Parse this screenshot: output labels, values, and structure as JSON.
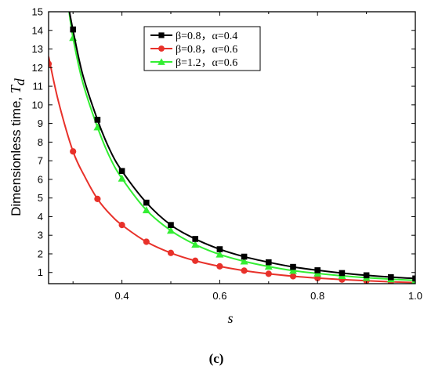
{
  "chart_data": {
    "type": "line",
    "panel_label": "(c)",
    "xlabel": "s",
    "ylabel_main": "Dimensionless time, ",
    "ylabel_symbol": "T",
    "ylabel_subscript": "d",
    "xlim": [
      0.25,
      1.0
    ],
    "ylim": [
      0.4,
      15
    ],
    "x_ticks": [
      0.4,
      0.6,
      0.8,
      1.0
    ],
    "x_tick_labels": [
      "0.4",
      "0.6",
      "0.8",
      "1.0"
    ],
    "y_ticks": [
      1,
      2,
      3,
      4,
      5,
      6,
      7,
      8,
      9,
      10,
      11,
      12,
      13,
      14,
      15
    ],
    "y_tick_labels": [
      "1",
      "2",
      "3",
      "4",
      "5",
      "6",
      "7",
      "8",
      "9",
      "10",
      "11",
      "12",
      "13",
      "14",
      "15"
    ],
    "grid": false,
    "legend_position": "top-center",
    "series": [
      {
        "name": "β=0.8，α=0.4",
        "color": "#000000",
        "marker": "square",
        "curve_x": [
          0.29,
          0.3,
          0.32,
          0.35,
          0.375,
          0.4,
          0.45,
          0.5,
          0.55,
          0.6,
          0.65,
          0.7,
          0.75,
          0.8,
          0.85,
          0.9,
          0.95,
          1.0
        ],
        "curve_y": [
          15.4,
          14.0,
          11.6,
          9.2,
          7.6,
          6.45,
          4.75,
          3.55,
          2.8,
          2.25,
          1.85,
          1.55,
          1.3,
          1.12,
          0.97,
          0.85,
          0.75,
          0.68
        ],
        "points_x": [
          0.3,
          0.35,
          0.4,
          0.45,
          0.5,
          0.55,
          0.6,
          0.65,
          0.7,
          0.75,
          0.8,
          0.85,
          0.9,
          0.95,
          1.0
        ],
        "points_y": [
          14.05,
          9.2,
          6.45,
          4.75,
          3.55,
          2.8,
          2.25,
          1.85,
          1.55,
          1.3,
          1.12,
          0.97,
          0.85,
          0.75,
          0.68
        ]
      },
      {
        "name": "β=0.8，α=0.6",
        "color": "#e8312a",
        "marker": "circle",
        "curve_x": [
          0.25,
          0.27,
          0.3,
          0.325,
          0.35,
          0.375,
          0.4,
          0.45,
          0.5,
          0.55,
          0.6,
          0.65,
          0.7,
          0.75,
          0.8,
          0.85,
          0.9,
          0.95,
          1.0
        ],
        "curve_y": [
          12.6,
          10.2,
          7.5,
          6.1,
          4.95,
          4.15,
          3.55,
          2.65,
          2.05,
          1.63,
          1.33,
          1.1,
          0.93,
          0.8,
          0.7,
          0.62,
          0.56,
          0.5,
          0.46
        ],
        "points_x": [
          0.25,
          0.3,
          0.35,
          0.4,
          0.45,
          0.5,
          0.55,
          0.6,
          0.65,
          0.7,
          0.75,
          0.8,
          0.85,
          0.9,
          0.95
        ],
        "points_y": [
          12.2,
          7.5,
          4.95,
          3.55,
          2.65,
          2.05,
          1.63,
          1.33,
          1.1,
          0.93,
          0.8,
          0.7,
          0.62,
          0.56,
          0.5
        ]
      },
      {
        "name": "β=1.2，α=0.6",
        "color": "#33ee33",
        "marker": "triangle",
        "curve_x": [
          0.29,
          0.3,
          0.32,
          0.35,
          0.375,
          0.4,
          0.45,
          0.5,
          0.55,
          0.6,
          0.65,
          0.7,
          0.75,
          0.8,
          0.85,
          0.9,
          0.95,
          1.0
        ],
        "curve_y": [
          15.4,
          13.6,
          11.2,
          8.8,
          7.2,
          6.05,
          4.35,
          3.25,
          2.5,
          1.97,
          1.6,
          1.32,
          1.1,
          0.95,
          0.82,
          0.72,
          0.64,
          0.58
        ],
        "points_x": [
          0.3,
          0.35,
          0.4,
          0.45,
          0.5,
          0.55,
          0.6,
          0.65,
          0.7,
          0.75,
          0.8,
          0.85,
          0.9,
          0.95,
          1.0
        ],
        "points_y": [
          13.6,
          8.8,
          6.05,
          4.35,
          3.25,
          2.5,
          1.97,
          1.6,
          1.32,
          1.1,
          0.95,
          0.82,
          0.72,
          0.64,
          0.58
        ]
      }
    ]
  }
}
